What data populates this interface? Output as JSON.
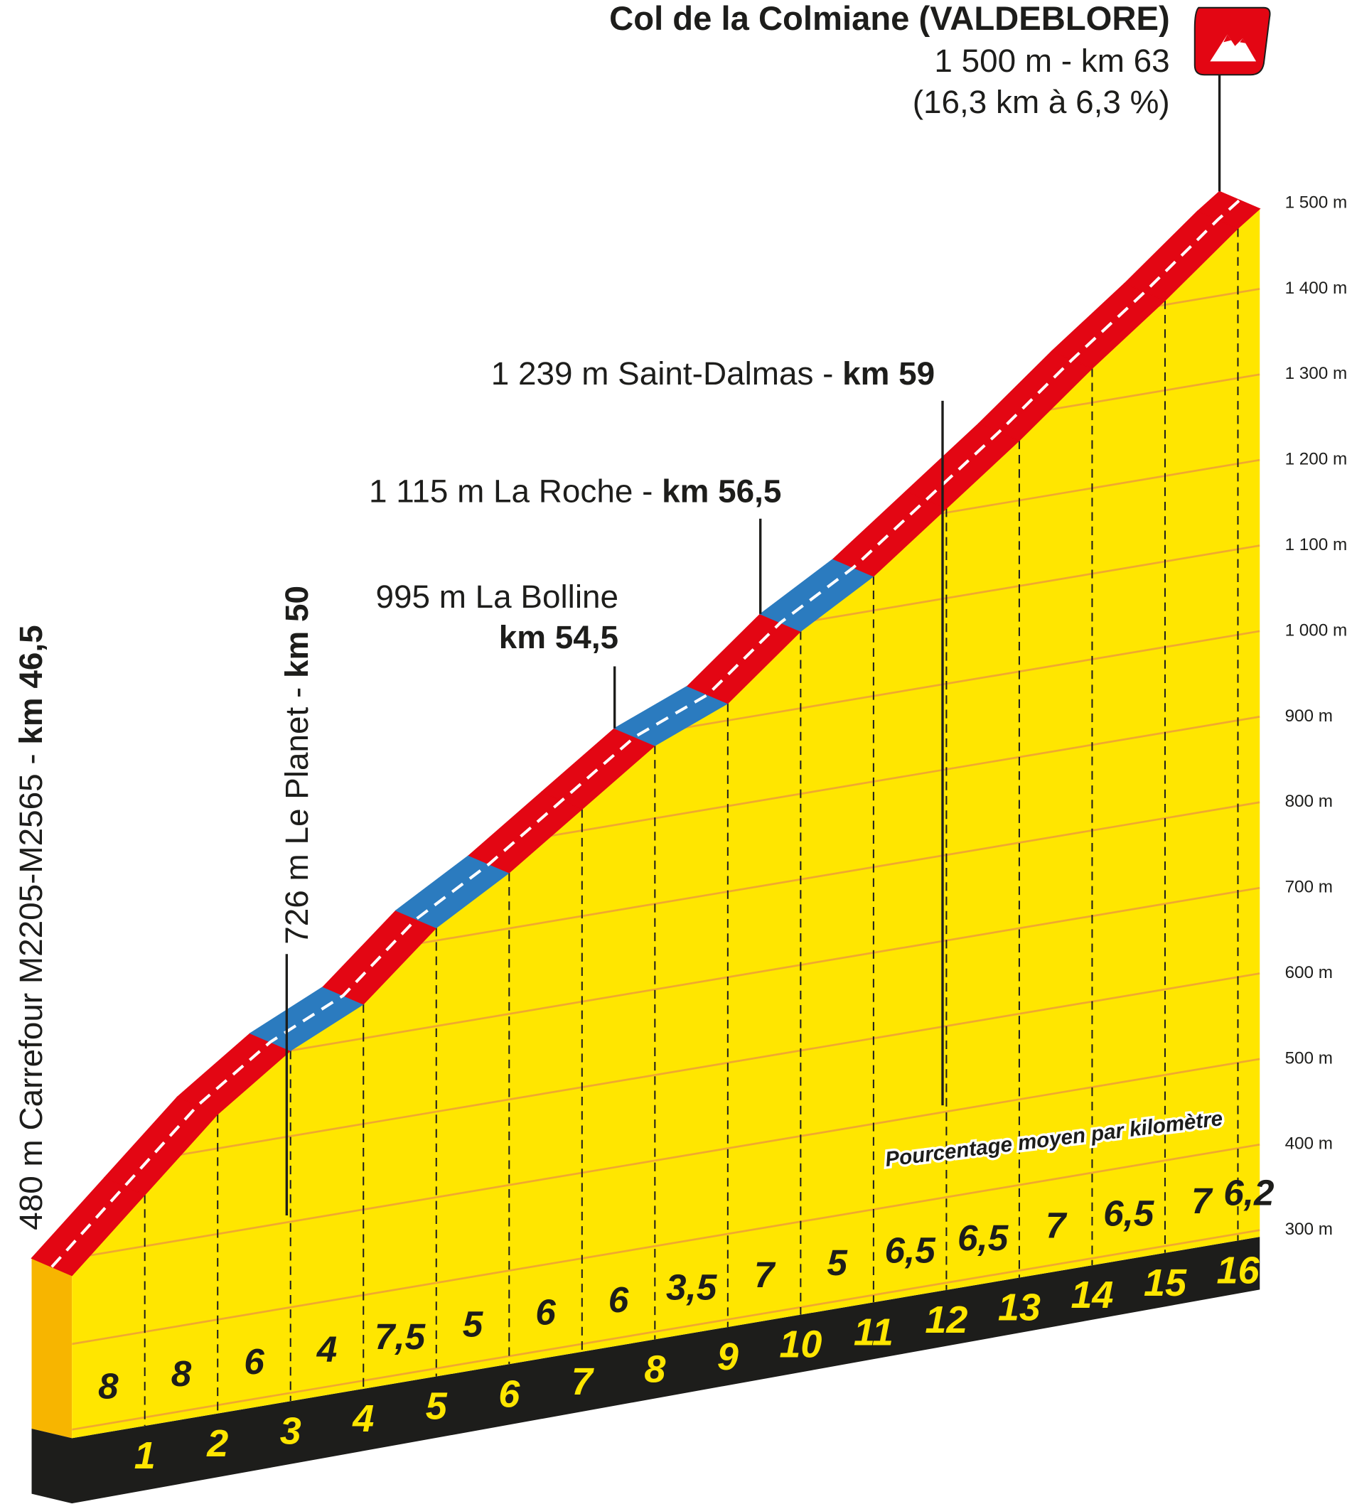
{
  "chart_data": {
    "type": "climb-profile",
    "title": "Col de la Colmiane (VALDEBLORE)",
    "summit_lines": [
      "1 500 m - km 63",
      "(16,3 km à 6,3 %)"
    ],
    "gradient_caption": "Pourcentage moyen par kilomètre",
    "values": [
      8,
      8,
      6,
      4,
      7.5,
      5,
      6,
      6,
      3.5,
      7,
      5,
      6.5,
      6.5,
      7,
      6.5,
      7,
      6.2
    ],
    "value_labels": [
      "8",
      "8",
      "6",
      "4",
      "7,5",
      "5",
      "6",
      "6",
      "3,5",
      "7",
      "5",
      "6,5",
      "6,5",
      "7",
      "6,5",
      "7",
      "6,2"
    ],
    "colors": [
      "#e30613",
      "#e30613",
      "#e30613",
      "#2b7bbf",
      "#e30613",
      "#2b7bbf",
      "#e30613",
      "#e30613",
      "#2b7bbf",
      "#e30613",
      "#2b7bbf",
      "#e30613",
      "#e30613",
      "#e30613",
      "#e30613",
      "#e30613",
      "#e30613"
    ],
    "xlim": [
      0,
      16.3
    ],
    "xticks": [
      1,
      2,
      3,
      4,
      5,
      6,
      7,
      8,
      9,
      10,
      11,
      12,
      13,
      14,
      15,
      16
    ],
    "ylim": [
      300,
      1500
    ],
    "yticks": [
      {
        "value": 300,
        "label": "300 m"
      },
      {
        "value": 400,
        "label": "400 m"
      },
      {
        "value": 500,
        "label": "500 m"
      },
      {
        "value": 600,
        "label": "600 m"
      },
      {
        "value": 700,
        "label": "700 m"
      },
      {
        "value": 800,
        "label": "800 m"
      },
      {
        "value": 900,
        "label": "900 m"
      },
      {
        "value": 1000,
        "label": "1 000 m"
      },
      {
        "value": 1100,
        "label": "1 100 m"
      },
      {
        "value": 1200,
        "label": "1 200 m"
      },
      {
        "value": 1300,
        "label": "1 300 m"
      },
      {
        "value": 1400,
        "label": "1 400 m"
      },
      {
        "value": 1500,
        "label": "1 500 m"
      }
    ],
    "annotations": [
      {
        "x": 0,
        "altitude": 480,
        "text": "480 m Carrefour M2205-M2565 - ",
        "km": "km 46,5"
      },
      {
        "x": 3.5,
        "text": "726 m Le Planet - ",
        "km": "km 50"
      },
      {
        "x": 8,
        "text": "995 m La Bolline",
        "km": "km 54,5"
      },
      {
        "x": 10,
        "text": "1 115 m La Roche - ",
        "km": "km 56,5"
      },
      {
        "x": 12.5,
        "text": "1 239 m Saint-Dalmas - ",
        "km": "km 59"
      }
    ]
  }
}
